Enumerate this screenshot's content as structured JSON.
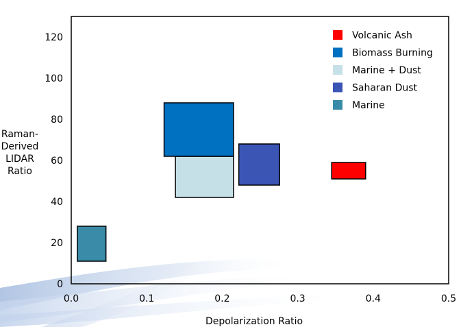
{
  "chart_data": {
    "type": "bar",
    "title": "",
    "xlabel": "Depolarization Ratio",
    "ylabel": "Raman-Derived LIDAR Ratio",
    "ylabel_lines": [
      "Raman-",
      "Derived",
      "LIDAR",
      "Ratio"
    ],
    "xlim": [
      0.0,
      0.5
    ],
    "ylim": [
      0,
      130
    ],
    "x_ticks": [
      "0.0",
      "0.1",
      "0.2",
      "0.3",
      "0.4",
      "0.5"
    ],
    "x_tick_values": [
      0.0,
      0.1,
      0.2,
      0.3,
      0.4,
      0.5
    ],
    "y_ticks": [
      "0",
      "20",
      "40",
      "60",
      "80",
      "100",
      "120"
    ],
    "y_tick_values": [
      0,
      20,
      40,
      60,
      80,
      100,
      120
    ],
    "grid": false,
    "legend_position": "top-right",
    "series": [
      {
        "name": "Volcanic Ash",
        "color": "#ff0000",
        "x_range": [
          0.345,
          0.39
        ],
        "y_range": [
          51,
          59
        ]
      },
      {
        "name": "Biomass Burning",
        "color": "#0070c0",
        "x_range": [
          0.123,
          0.215
        ],
        "y_range": [
          62,
          88
        ]
      },
      {
        "name": "Marine + Dust",
        "color": "#c6e0e8",
        "x_range": [
          0.138,
          0.215
        ],
        "y_range": [
          42,
          62
        ]
      },
      {
        "name": "Saharan Dust",
        "color": "#3a55b4",
        "x_range": [
          0.222,
          0.276
        ],
        "y_range": [
          48,
          68
        ]
      },
      {
        "name": "Marine",
        "color": "#3a8ba8",
        "x_range": [
          0.008,
          0.046
        ],
        "y_range": [
          11,
          28
        ]
      }
    ]
  }
}
